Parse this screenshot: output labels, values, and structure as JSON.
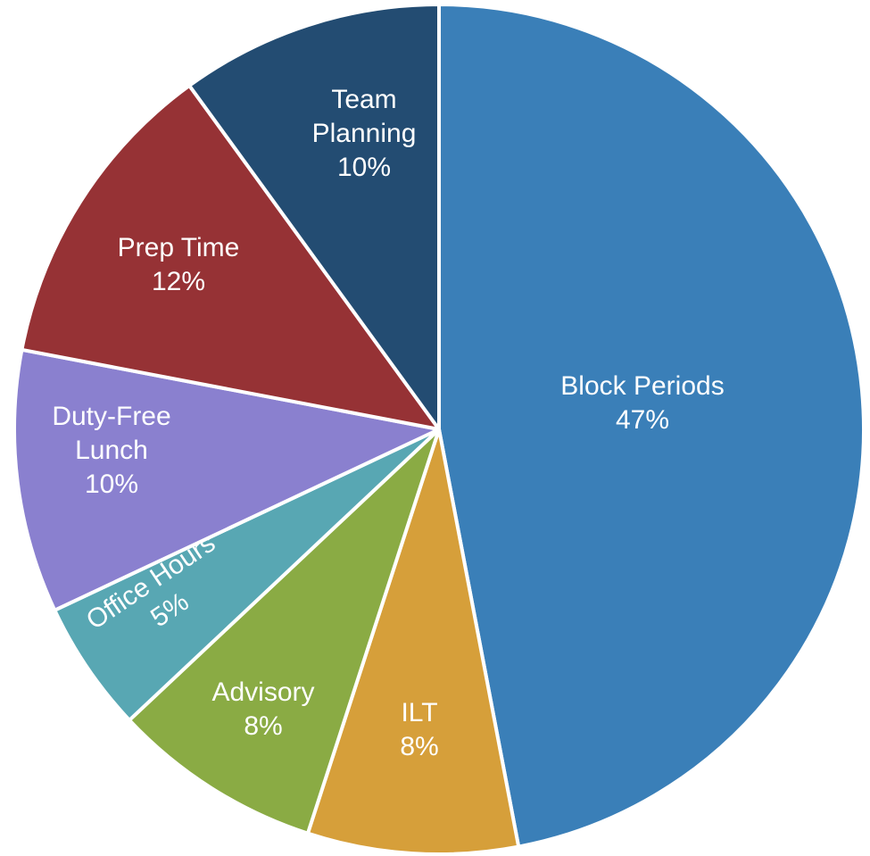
{
  "chart_data": {
    "type": "pie",
    "categories": [
      "Block Periods",
      "ILT",
      "Advisory",
      "Office Hours",
      "Duty-Free Lunch",
      "Prep Time",
      "Team Planning"
    ],
    "values": [
      47,
      8,
      8,
      5,
      10,
      12,
      10
    ],
    "value_labels": [
      "47%",
      "8%",
      "8%",
      "5%",
      "10%",
      "12%",
      "10%"
    ],
    "colors": [
      "#3a7fb8",
      "#d69f3a",
      "#8aab44",
      "#58a7b3",
      "#8a80cf",
      "#963235",
      "#234c72"
    ]
  }
}
